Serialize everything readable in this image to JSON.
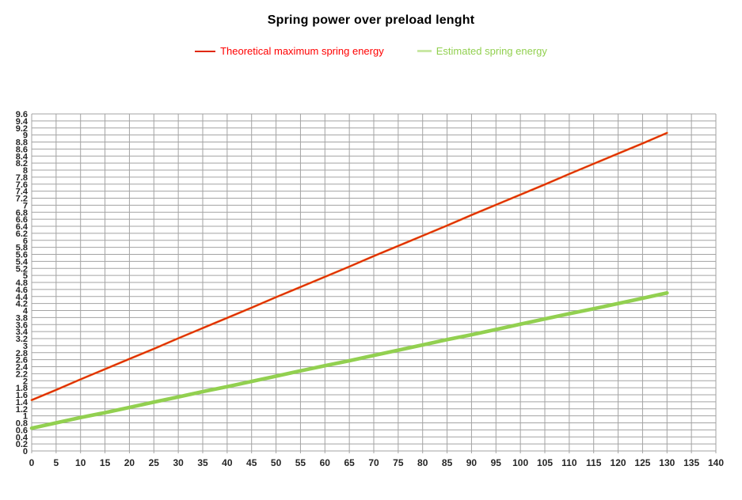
{
  "title": "Spring power over preload lenght",
  "legend": {
    "items": [
      {
        "label": "Theoretical maximum spring energy",
        "text_color": "#ff0000",
        "marker_color": "#e02800"
      },
      {
        "label": "Estimated spring energy",
        "text_color": "#92d050",
        "marker_color": "#c9e8a4"
      }
    ]
  },
  "chart_data": {
    "type": "line",
    "title": "Spring power over preload lenght",
    "xlabel": "",
    "ylabel": "",
    "xlim": [
      0,
      140
    ],
    "ylim": [
      0,
      9.6
    ],
    "grid": true,
    "gridline_color": "#a3a3a3",
    "axis_label_color": "#262626",
    "legend_position": "top-center",
    "x_tick_labels": [
      "0",
      "5",
      "10",
      "15",
      "20",
      "25",
      "30",
      "35",
      "40",
      "45",
      "50",
      "55",
      "60",
      "65",
      "70",
      "75",
      "80",
      "85",
      "90",
      "95",
      "100",
      "105",
      "110",
      "115",
      "120",
      "125",
      "130",
      "135",
      "140"
    ],
    "y_tick_labels": [
      "9.6",
      "9.4",
      "9.2",
      "9",
      "8.8",
      "8.6",
      "8.4",
      "8.2",
      "8",
      "7.8",
      "7.6",
      "7.4",
      "7.2",
      "7",
      "6.8",
      "6.6",
      "6.4",
      "6.2",
      "6",
      "5.8",
      "5.6",
      "5.4",
      "5.2",
      "5",
      "4.8",
      "4.6",
      "4.4",
      "4.2",
      "4",
      "3.8",
      "3.6",
      "3.4",
      "3.2",
      "3",
      "2.8",
      "2.6",
      "2.4",
      "2.2",
      "2",
      "1.8",
      "1.6",
      "1.4",
      "1.2",
      "1",
      "0.8",
      "0.6",
      "0.4",
      "0.2",
      "0"
    ],
    "x": [
      0,
      5,
      10,
      15,
      20,
      25,
      30,
      35,
      40,
      45,
      50,
      55,
      60,
      65,
      70,
      75,
      80,
      85,
      90,
      95,
      100,
      105,
      110,
      115,
      120,
      125,
      130
    ],
    "series": [
      {
        "name": "Theoretical maximum spring energy",
        "color_main": "#dd1c00",
        "color_edge": "#ed7d31",
        "line_width": 1.4,
        "edge_width": 2.8,
        "values": [
          1.45,
          1.74,
          2.04,
          2.33,
          2.62,
          2.91,
          3.21,
          3.5,
          3.79,
          4.08,
          4.38,
          4.67,
          4.96,
          5.25,
          5.55,
          5.84,
          6.13,
          6.42,
          6.72,
          7.01,
          7.3,
          7.59,
          7.89,
          8.18,
          8.47,
          8.76,
          9.06
        ]
      },
      {
        "name": "Estimated spring energy",
        "color_main": "#92d050",
        "color_edge": "#92d050",
        "line_width": 4.6,
        "edge_width": 4.6,
        "values": [
          0.65,
          0.8,
          0.95,
          1.09,
          1.24,
          1.39,
          1.54,
          1.69,
          1.83,
          1.98,
          2.13,
          2.28,
          2.43,
          2.57,
          2.72,
          2.87,
          3.02,
          3.17,
          3.31,
          3.46,
          3.61,
          3.76,
          3.91,
          4.05,
          4.2,
          4.35,
          4.5
        ]
      }
    ]
  }
}
